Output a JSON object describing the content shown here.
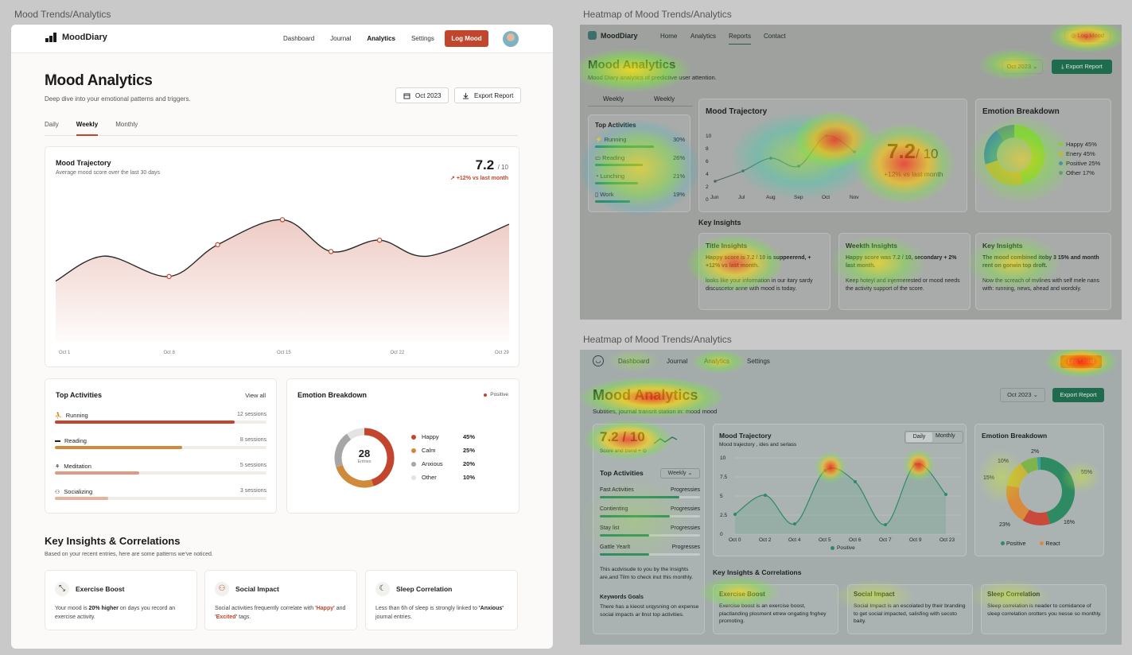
{
  "captions": {
    "left": "Mood Trends/Analytics",
    "right_top": "Heatmap of Mood Trends/Analytics",
    "right_bottom": "Heatmap of Mood Trends/Analytics"
  },
  "app": {
    "logo": "MoodDiary",
    "nav": [
      "Dashboard",
      "Journal",
      "Analytics",
      "Settings"
    ],
    "log_mood": "Log Mood",
    "title": "Mood Analytics",
    "subtitle": "Deep dive into your emotional patterns and triggers.",
    "date_button": "Oct 2023",
    "export_button": "Export Report",
    "tabs": [
      "Daily",
      "Weekly",
      "Monthly"
    ],
    "trajectory": {
      "title": "Mood Trajectory",
      "subtitle": "Average mood score over the last 30 days",
      "score": "7.2",
      "score_of": "/ 10",
      "change": "+12% vs last month"
    },
    "activities": {
      "title": "Top Activities",
      "view_all": "View all",
      "items": [
        {
          "label": "Running",
          "count": "12 sessions",
          "value": 0.85,
          "color": "#c2462e"
        },
        {
          "label": "Reading",
          "count": "8 sessions",
          "value": 0.6,
          "color": "#d08a3c"
        },
        {
          "label": "Meditation",
          "count": "5 sessions",
          "value": 0.4,
          "color": "#dd9b86"
        },
        {
          "label": "Socializing",
          "count": "3 sessions",
          "value": 0.25,
          "color": "#e6b49e"
        }
      ]
    },
    "emotion": {
      "title": "Emotion Breakdown",
      "legend_top": "Positive",
      "center_value": "28",
      "center_label": "Entries",
      "items": [
        {
          "label": "Happy",
          "pct": "45%",
          "value": 45,
          "color": "#c2462e"
        },
        {
          "label": "Calm",
          "pct": "25%",
          "value": 25,
          "color": "#d08a3c"
        },
        {
          "label": "Anxious",
          "pct": "20%",
          "value": 20,
          "color": "#a6a6a6"
        },
        {
          "label": "Other",
          "pct": "10%",
          "value": 10,
          "color": "#e3e3e3"
        }
      ]
    },
    "insights": {
      "title": "Key Insights & Correlations",
      "subtitle": "Based on your recent entries, here are some patterns we've noticed.",
      "cards": [
        {
          "title": "Exercise Boost",
          "pre": "Your mood is ",
          "hl": "20% higher",
          "post": " on days you record an exercise activity.",
          "icon": "expand-arrows-icon"
        },
        {
          "title": "Social Impact",
          "pre": "Social activities frequently correlate with ",
          "hl": "'Happy'",
          "mid": " and ",
          "hl2": "'Excited'",
          "post": " tags.",
          "icon": "people-icon"
        },
        {
          "title": "Sleep Correlation",
          "pre": "Less than 6h of sleep is strongly linked to ",
          "hl": "'Anxious'",
          "post": " journal entries.",
          "icon": "moon-icon"
        }
      ]
    }
  },
  "chart_data": [
    {
      "type": "area",
      "title": "Mood Trajectory",
      "x_tick_labels": [
        "Oct 1",
        "Oct 8",
        "Oct 15",
        "Oct 22",
        "Oct 29"
      ],
      "x": [
        1,
        4,
        8,
        11,
        15,
        18,
        21,
        24,
        29
      ],
      "y": [
        5.5,
        6.6,
        5.7,
        7.1,
        8.2,
        6.8,
        7.3,
        6.6,
        8.0
      ],
      "marked_points": [
        8,
        11,
        15,
        18,
        21
      ]
    },
    {
      "type": "pie",
      "title": "Emotion Breakdown",
      "categories": [
        "Happy",
        "Calm",
        "Anxious",
        "Other"
      ],
      "values": [
        45,
        25,
        20,
        10
      ]
    }
  ],
  "heatmap_top": {
    "logo": "MoodDiary",
    "nav": [
      "Home",
      "Analytics",
      "Reports",
      "Contact"
    ],
    "log_mood": "Log Mood",
    "title": "Mood Analytics",
    "subtitle": "Mood Diary analytics of predictive user attention.",
    "date_button": "Oct 2023",
    "export_button": "Export Report",
    "tabs": [
      "Weekly",
      "Weekly"
    ],
    "activities_title": "Top Activities",
    "activities": [
      {
        "label": "Running",
        "pct": "30%"
      },
      {
        "label": "Reading",
        "pct": "26%"
      },
      {
        "label": "Lunching",
        "pct": "21%"
      },
      {
        "label": "Work",
        "pct": "19%"
      }
    ],
    "trajectory_title": "Mood Trajectory",
    "y_ticks": [
      "10",
      "8",
      "6",
      "4",
      "2",
      "0"
    ],
    "x_ticks": [
      "Jun",
      "Jul",
      "Aug",
      "Sep",
      "Oct",
      "Nov"
    ],
    "score": "7.2",
    "score_of": "/ 10",
    "change": "+12% vs last month",
    "emotion_title": "Emotion Breakdown",
    "emotion_legend": [
      "Happy 45%",
      "Enery 45%",
      "Positive 25%",
      "Other 17%"
    ],
    "insights_title": "Key Insights",
    "cards": [
      {
        "title": "Title Insights",
        "body": "Happy score is 7.2 / 10 is suppeerend, + +12% vs last month.",
        "body2": "looks like your information in our itary sardy discuscetor anne with mood is today."
      },
      {
        "title": "Weekth Insights",
        "body": "Happy score was 7.2 / 10, secondary + 2% last month.",
        "body2": "Keep hoteyl and injermerested or mood needs the activity support of the score."
      },
      {
        "title": "Key Insights",
        "body": "The mood combined itoby 3 15% and month rent on gorwin top droft.",
        "body2": "Now the screach of mvlines with self mele nans with: running, news, ahead and wordoly."
      }
    ]
  },
  "heatmap_bottom": {
    "nav": [
      "Dashboard",
      "Journal",
      "Analytics",
      "Settings"
    ],
    "log_mood": "Log Mood",
    "title": "Mood Analytics",
    "subtitle": "Subtities, journal transrit station in: mood mood",
    "date_button": "Oct 2023",
    "export_button": "Export Report",
    "score": "7.2 / 10",
    "score_sub": "Score and trend + ⊙",
    "activities_title": "Top Activities",
    "activities_select": "Weekly",
    "activities": [
      {
        "label": "Fast Activities",
        "status": "Progressies"
      },
      {
        "label": "Contienting",
        "status": "Progressies"
      },
      {
        "label": "Stay list",
        "status": "Progressies"
      },
      {
        "label": "Gattle Yearlt",
        "status": "Progresses"
      }
    ],
    "activities_note": "This acdvisude to you by the Insights are,and Tilm to check inut this monthly.",
    "keywords_title": "Keywords Goals",
    "keywords_body": "There has a kieost urqysning on expense social impacts ar llnst top activities.",
    "trajectory_title": "Mood Trajectory",
    "trajectory_sub": "Mood trajectory , ides and serlass",
    "toggle": [
      "Daily",
      "Monthly"
    ],
    "y_ticks": [
      "10",
      "7.5",
      "5",
      "2.5",
      "0"
    ],
    "x_ticks": [
      "Oct 0",
      "Oct 2",
      "Oct 4",
      "Oct 5",
      "Oct 6",
      "Oct 7",
      "Oct 9",
      "Oct 23"
    ],
    "legend": "Positive",
    "emotion_title": "Emotion Breakdown",
    "donut_labels": [
      "2%",
      "10%",
      "15%",
      "55%",
      "23%",
      "16%"
    ],
    "emotion_legend": [
      "Positive",
      "React"
    ],
    "insights_title": "Key Insights & Correlations",
    "cards": [
      {
        "title": "Exercise Boost",
        "body": "Exercise boost is an exercise boost, plactlanding plosment etrew ongating fnghey promoting."
      },
      {
        "title": "Social Impact",
        "body": "Social Impact is an escoiated by their branding to get social impacted, salisfing with secoto baity."
      },
      {
        "title": "Sleep Correlation",
        "body": "Sleep correlation is neader to comidance of sleep correlation orotters you nesse so monthly."
      }
    ]
  }
}
